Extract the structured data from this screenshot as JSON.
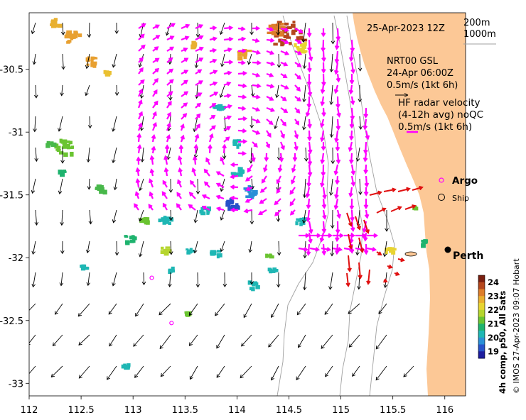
{
  "map": {
    "lon_range": [
      112,
      116.2
    ],
    "lat_range": [
      -33.1,
      -30.05
    ],
    "x_ticks": [
      {
        "value": 112,
        "label": "112"
      },
      {
        "value": 112.5,
        "label": "112.5"
      },
      {
        "value": 113,
        "label": "113"
      },
      {
        "value": 113.5,
        "label": "113.5"
      },
      {
        "value": 114,
        "label": "114"
      },
      {
        "value": 114.5,
        "label": "114.5"
      },
      {
        "value": 115,
        "label": "115"
      },
      {
        "value": 115.5,
        "label": "115.5"
      },
      {
        "value": 116,
        "label": "116"
      }
    ],
    "y_ticks": [
      {
        "value": -30.5,
        "label": "-30.5"
      },
      {
        "value": -31,
        "label": "-31"
      },
      {
        "value": -31.5,
        "label": "-31.5"
      },
      {
        "value": -32,
        "label": "-32"
      },
      {
        "value": -32.5,
        "label": "-32.5"
      },
      {
        "value": -33,
        "label": "-33"
      }
    ],
    "colors": {
      "land": "#fcc896",
      "hf_radar": "#ff00ff",
      "radar_red": "#e01010",
      "arrow": "#000000",
      "bathymetry": "#a0a0a0"
    }
  },
  "labels": {
    "date": "25-Apr-2023 12Z",
    "contour_200": "200m",
    "contour_1000": "1000m",
    "model_name": "NRT00 GSL",
    "model_time": "24-Apr 06:00Z",
    "model_scale": "0.5m/s (1kt 6h)",
    "hf_title": "HF radar velocity",
    "hf_subtitle": "(4-12h avg) noQC",
    "hf_scale": "0.5m/s (1kt 6h)",
    "argo": "Argo",
    "ship": "Ship",
    "perth": "Perth",
    "colorbar_title": "4h comp, p50, All Sats",
    "credit": "© IMOS 27-Apr-2023 09:07 Hobart"
  },
  "colorbar": {
    "ticks": [
      "24",
      "23",
      "22",
      "21",
      "20",
      "19"
    ],
    "min": 18.5,
    "max": 24.5
  },
  "markers": {
    "perth": {
      "lon": 115.86,
      "lat": -31.95
    },
    "argo_floats": [
      {
        "lon": 113.18,
        "lat": -32.16
      },
      {
        "lon": 113.37,
        "lat": -32.52
      }
    ]
  }
}
